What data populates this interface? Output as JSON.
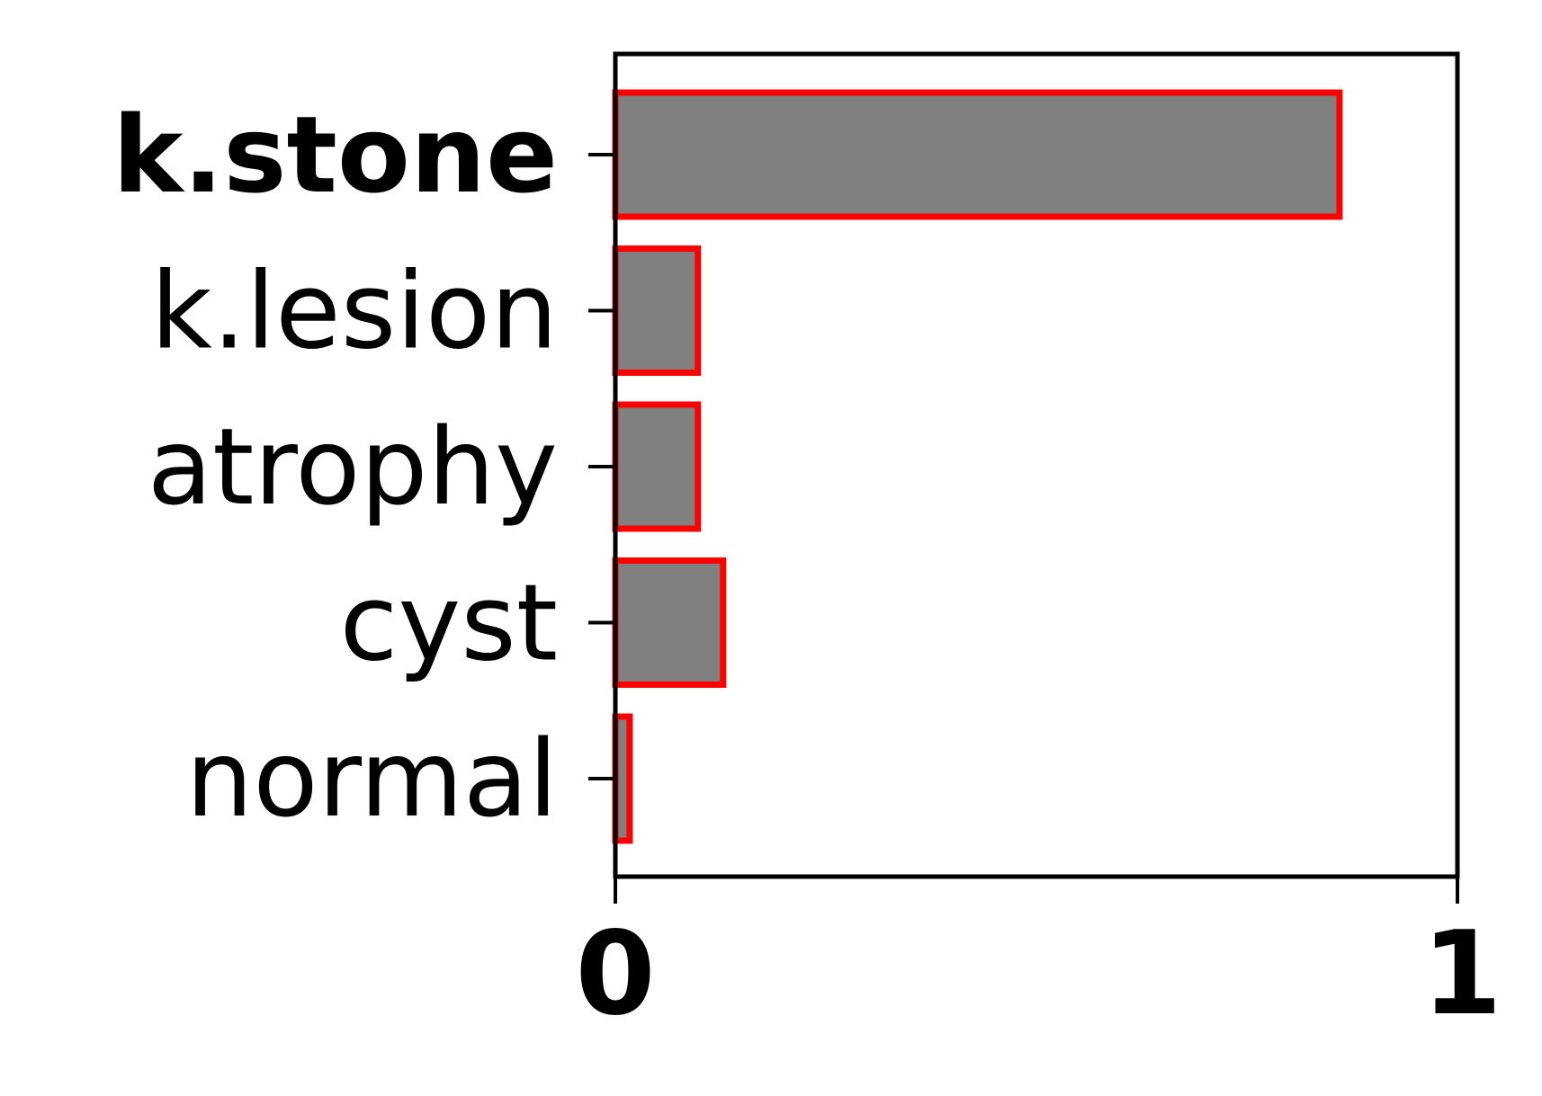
{
  "chart_data": {
    "type": "bar",
    "orientation": "horizontal",
    "categories": [
      "k.stone",
      "k.lesion",
      "atrophy",
      "cyst",
      "normal"
    ],
    "values": [
      0.86,
      0.098,
      0.098,
      0.128,
      0.017
    ],
    "highlighted_category": "k.stone",
    "xlim": [
      0,
      1
    ],
    "x_ticks": [
      "0",
      "1"
    ],
    "title": "",
    "xlabel": "",
    "ylabel": "",
    "grid": false,
    "bar_fill": "#808080",
    "bar_edge": "#ff0000"
  }
}
